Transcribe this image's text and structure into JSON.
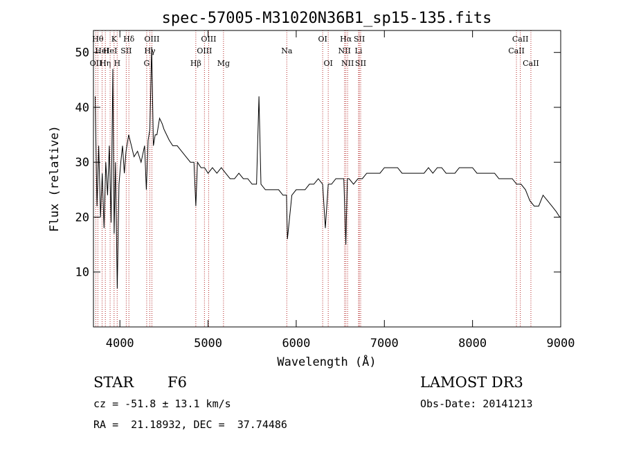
{
  "chart_data": {
    "type": "line",
    "title": "spec-57005-M31020N36B1_sp15-135.fits",
    "xlabel": "Wavelength (Å)",
    "ylabel": "Flux (relative)",
    "xlim": [
      3700,
      9000
    ],
    "ylim": [
      0,
      54
    ],
    "xticks": [
      4000,
      5000,
      6000,
      7000,
      8000,
      9000
    ],
    "yticks": [
      10,
      20,
      30,
      40,
      50
    ],
    "grid": false,
    "line_color": "#000000",
    "marker_color": "#b22222",
    "series": [
      {
        "x": [
          3720,
          3740,
          3760,
          3780,
          3800,
          3820,
          3840,
          3860,
          3880,
          3900,
          3920,
          3935,
          3950,
          3970,
          3990,
          4010,
          4030,
          4050,
          4070,
          4100,
          4130,
          4160,
          4200,
          4240,
          4280,
          4300,
          4320,
          4340,
          4360,
          4380,
          4400,
          4420,
          4450,
          4480,
          4500,
          4530,
          4560,
          4600,
          4650,
          4700,
          4750,
          4800,
          4840,
          4861,
          4880,
          4920,
          4960,
          5000,
          5050,
          5100,
          5150,
          5200,
          5250,
          5300,
          5350,
          5400,
          5450,
          5500,
          5550,
          5577,
          5600,
          5650,
          5700,
          5750,
          5800,
          5850,
          5890,
          5900,
          5950,
          6000,
          6050,
          6100,
          6150,
          6200,
          6250,
          6300,
          6330,
          6363,
          6400,
          6450,
          6500,
          6540,
          6563,
          6580,
          6600,
          6650,
          6700,
          6750,
          6800,
          6850,
          6900,
          6950,
          7000,
          7050,
          7100,
          7150,
          7200,
          7250,
          7300,
          7350,
          7400,
          7450,
          7500,
          7550,
          7600,
          7650,
          7700,
          7750,
          7800,
          7850,
          7900,
          7950,
          8000,
          8050,
          8100,
          8150,
          8200,
          8250,
          8300,
          8350,
          8400,
          8450,
          8500,
          8550,
          8600,
          8650,
          8700,
          8750,
          8800,
          8850,
          8900,
          8950,
          8990
        ],
        "y": [
          42,
          22,
          33,
          20,
          28,
          18,
          30,
          24,
          33,
          19,
          47,
          17,
          30,
          7,
          26,
          30,
          33,
          28,
          32,
          35,
          33,
          31,
          32,
          30,
          33,
          25,
          34,
          36,
          51,
          33,
          35,
          35,
          38,
          37,
          36,
          35,
          34,
          33,
          33,
          32,
          31,
          30,
          30,
          22,
          30,
          29,
          29,
          28,
          29,
          28,
          29,
          28,
          27,
          27,
          28,
          27,
          27,
          26,
          26,
          42,
          26,
          25,
          25,
          25,
          25,
          24,
          24,
          16,
          24,
          25,
          25,
          25,
          26,
          26,
          27,
          26,
          18,
          26,
          26,
          27,
          27,
          27,
          15,
          27,
          27,
          26,
          27,
          27,
          28,
          28,
          28,
          28,
          29,
          29,
          29,
          29,
          28,
          28,
          28,
          28,
          28,
          28,
          29,
          28,
          29,
          29,
          28,
          28,
          28,
          29,
          29,
          29,
          29,
          28,
          28,
          28,
          28,
          28,
          27,
          27,
          27,
          27,
          26,
          26,
          25,
          23,
          22,
          22,
          24,
          23,
          22,
          21,
          20
        ]
      }
    ],
    "line_markers": [
      {
        "wavelength": 3750,
        "row": 1,
        "label": "Hθ"
      },
      {
        "wavelength": 3798,
        "row": 2,
        "label": "HeI"
      },
      {
        "wavelength": 3727,
        "row": 3,
        "label": "OII"
      },
      {
        "wavelength": 3835,
        "row": 3,
        "label": "Hη"
      },
      {
        "wavelength": 3889,
        "row": 2,
        "label": "HeI"
      },
      {
        "wavelength": 3934,
        "row": 1,
        "label": "K"
      },
      {
        "wavelength": 3969,
        "row": 3,
        "label": "H"
      },
      {
        "wavelength": 4072,
        "row": 2,
        "label": "SII"
      },
      {
        "wavelength": 4102,
        "row": 1,
        "label": "Hδ"
      },
      {
        "wavelength": 4304,
        "row": 3,
        "label": "G"
      },
      {
        "wavelength": 4340,
        "row": 2,
        "label": "Hγ"
      },
      {
        "wavelength": 4363,
        "row": 1,
        "label": "OIII"
      },
      {
        "wavelength": 4861,
        "row": 3,
        "label": "Hβ"
      },
      {
        "wavelength": 4959,
        "row": 2,
        "label": "OIII"
      },
      {
        "wavelength": 5007,
        "row": 1,
        "label": "OIII"
      },
      {
        "wavelength": 5175,
        "row": 3,
        "label": "Mg"
      },
      {
        "wavelength": 5893,
        "row": 2,
        "label": "Na"
      },
      {
        "wavelength": 6300,
        "row": 1,
        "label": "OI"
      },
      {
        "wavelength": 6363,
        "row": 3,
        "label": "OI"
      },
      {
        "wavelength": 6548,
        "row": 2,
        "label": "NII"
      },
      {
        "wavelength": 6563,
        "row": 1,
        "label": "Hα"
      },
      {
        "wavelength": 6583,
        "row": 3,
        "label": "NII"
      },
      {
        "wavelength": 6707,
        "row": 2,
        "label": "Li"
      },
      {
        "wavelength": 6716,
        "row": 1,
        "label": "SII"
      },
      {
        "wavelength": 6731,
        "row": 3,
        "label": "SII"
      },
      {
        "wavelength": 8498,
        "row": 2,
        "label": "CaII"
      },
      {
        "wavelength": 8542,
        "row": 1,
        "label": "CaII"
      },
      {
        "wavelength": 8662,
        "row": 3,
        "label": "CaII"
      }
    ]
  },
  "info": {
    "object_class": "STAR",
    "subclass": "F6",
    "survey": "LAMOST DR3",
    "cz": "cz = -51.8 ± 13.1 km/s",
    "obs_date": "Obs-Date: 20141213",
    "coords": "RA =  21.18932, DEC =  37.74486"
  }
}
